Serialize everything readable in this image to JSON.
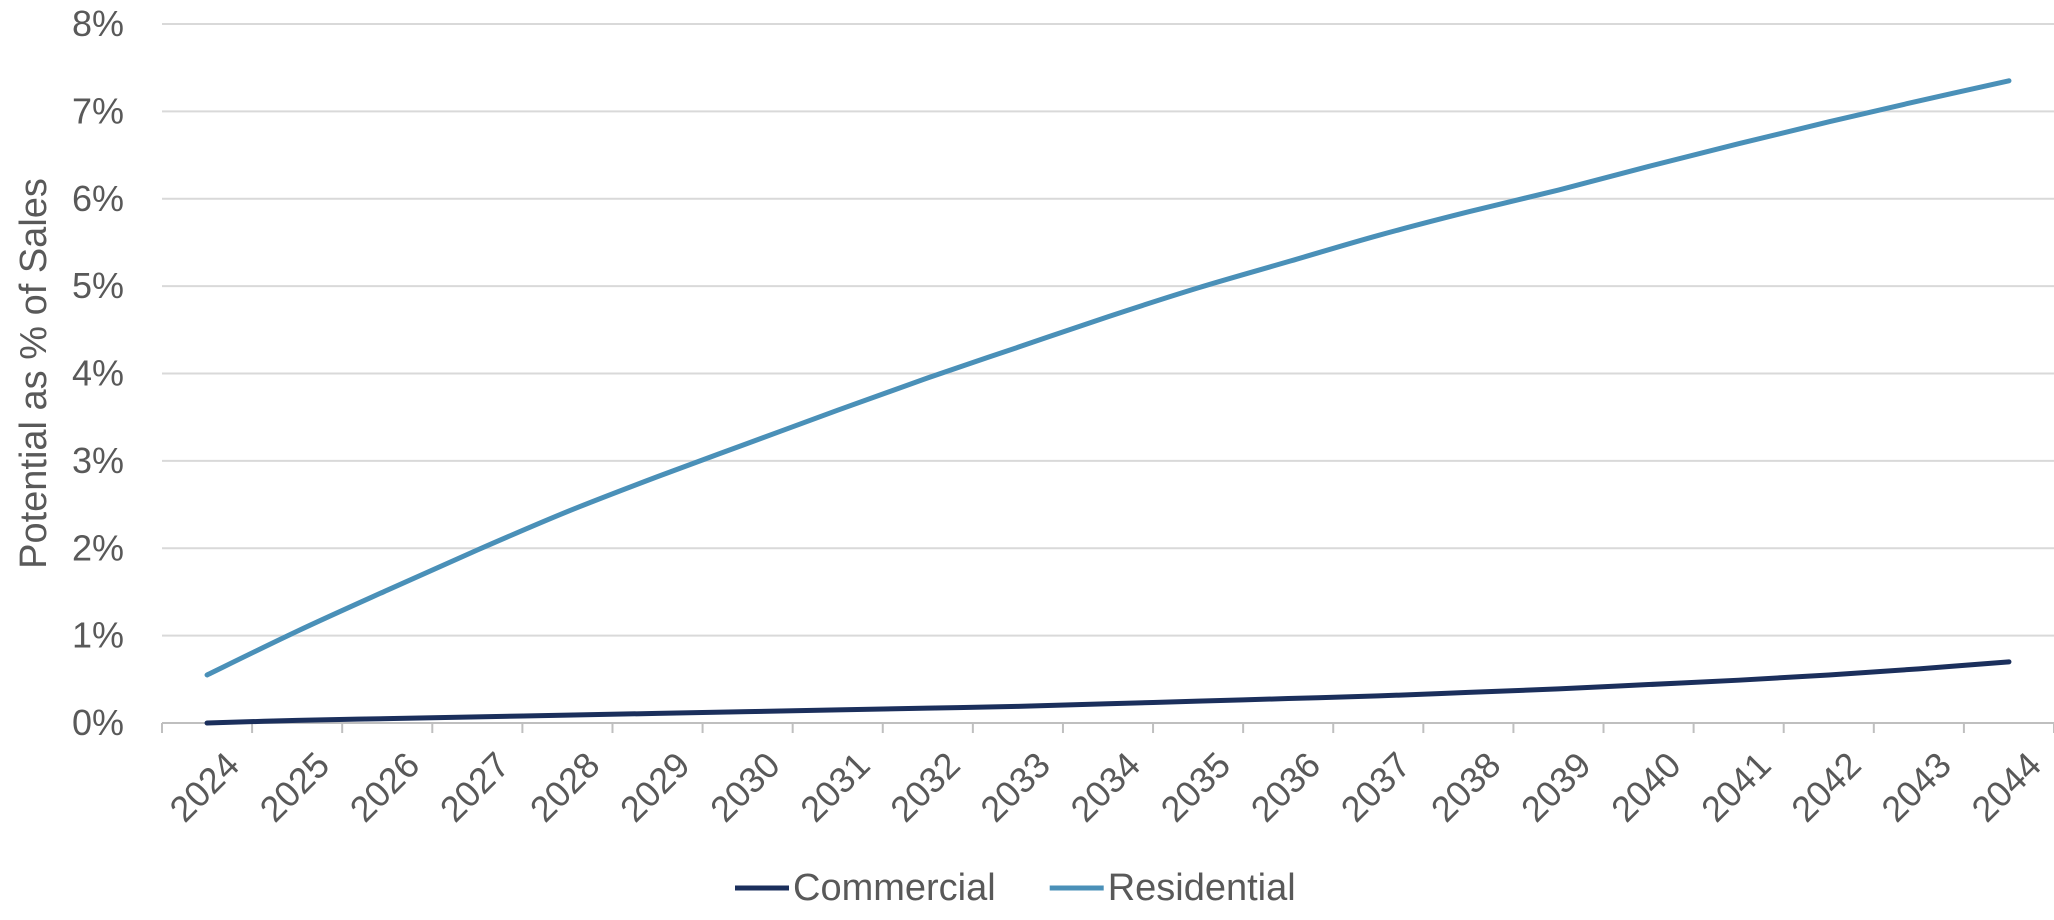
{
  "chart_data": {
    "type": "line",
    "x": [
      "2024",
      "2025",
      "2026",
      "2027",
      "2028",
      "2029",
      "2030",
      "2031",
      "2032",
      "2033",
      "2034",
      "2035",
      "2036",
      "2037",
      "2038",
      "2039",
      "2040",
      "2041",
      "2042",
      "2043",
      "2044"
    ],
    "series": [
      {
        "name": "Commercial",
        "color": "#1b2f5c",
        "values": [
          0.0,
          0.03,
          0.05,
          0.07,
          0.09,
          0.11,
          0.13,
          0.15,
          0.17,
          0.19,
          0.22,
          0.25,
          0.28,
          0.31,
          0.35,
          0.39,
          0.44,
          0.49,
          0.55,
          0.62,
          0.7
        ]
      },
      {
        "name": "Residential",
        "color": "#4a90b8",
        "values": [
          0.55,
          1.05,
          1.52,
          1.98,
          2.42,
          2.82,
          3.2,
          3.58,
          3.95,
          4.3,
          4.65,
          4.98,
          5.28,
          5.58,
          5.85,
          6.1,
          6.37,
          6.63,
          6.88,
          7.12,
          7.35
        ]
      }
    ],
    "ylabel": "Potential as % of Sales",
    "xlabel": "",
    "ylim": [
      0,
      8
    ],
    "y_ticks": [
      "0%",
      "1%",
      "2%",
      "3%",
      "4%",
      "5%",
      "6%",
      "7%",
      "8%"
    ],
    "grid": true,
    "legend_position": "bottom"
  }
}
